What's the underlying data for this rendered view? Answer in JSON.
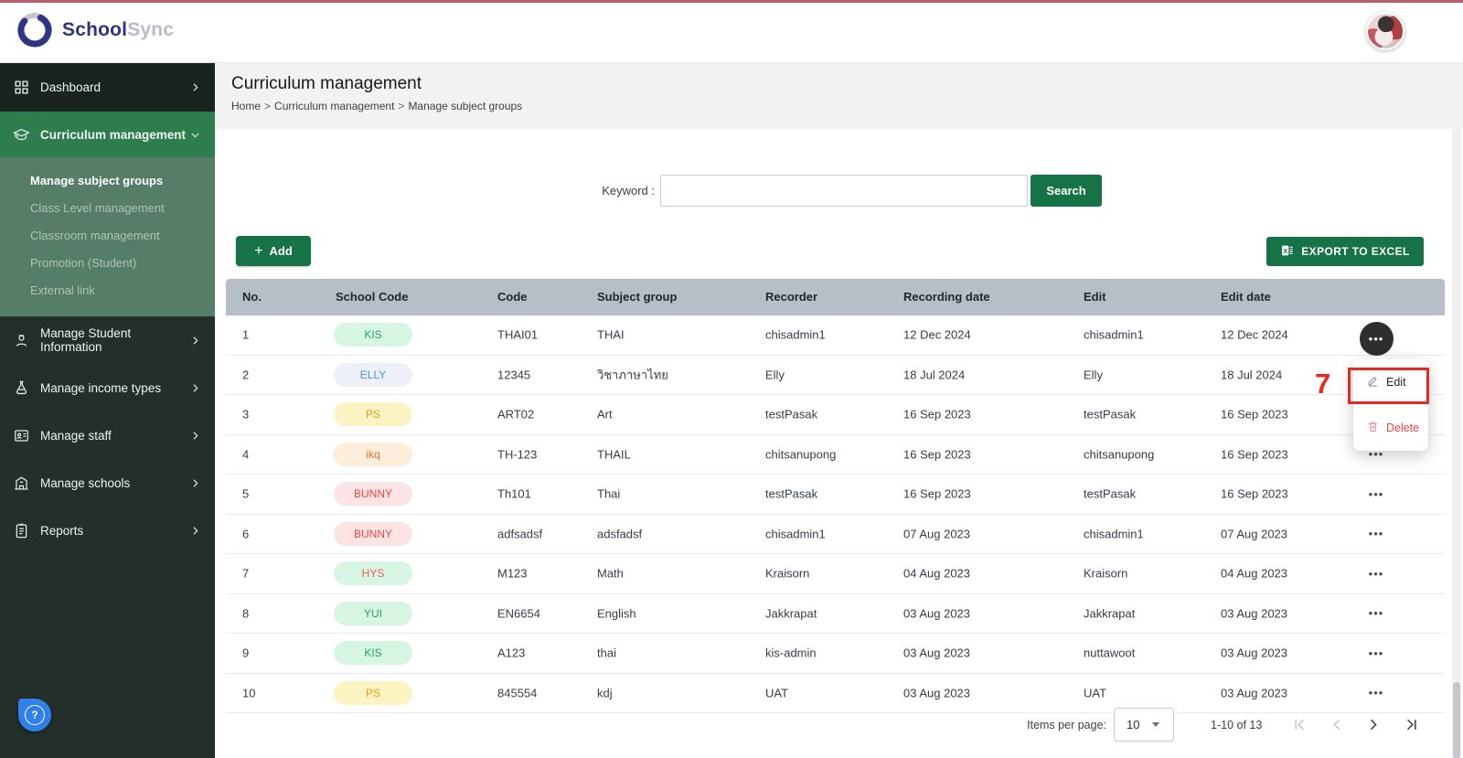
{
  "brand": {
    "name_primary": "School",
    "name_secondary": "Sync"
  },
  "colors": {
    "accent_green": "#157347",
    "sidebar_active_green": "#2e7d4e",
    "table_header_bg": "#b6bec8",
    "annotation_red": "#e8291f",
    "delete_red": "#ef4444",
    "help_blue": "#2f80ed"
  },
  "sidebar": {
    "items": [
      {
        "type": "parent",
        "name": "sidebar-item-dashboard",
        "icon": "grid-icon",
        "label": "Dashboard",
        "chevron": "chevron-right-icon",
        "active": false
      },
      {
        "type": "parent",
        "name": "sidebar-item-curriculum-management",
        "icon": "graduation-cap-icon",
        "label": "Curriculum management",
        "chevron": "chevron-down-icon",
        "active": true
      },
      {
        "type": "child",
        "name": "sidebar-item-manage-subject-groups",
        "label": "Manage subject groups",
        "active": true
      },
      {
        "type": "child",
        "name": "sidebar-item-class-level-management",
        "label": "Class Level management",
        "active": false
      },
      {
        "type": "child",
        "name": "sidebar-item-classroom-management",
        "label": "Classroom management",
        "active": false
      },
      {
        "type": "child",
        "name": "sidebar-item-promotion-student",
        "label": "Promotion (Student)",
        "active": false
      },
      {
        "type": "child",
        "name": "sidebar-item-external-link",
        "label": "External link",
        "active": false
      },
      {
        "type": "parent",
        "name": "sidebar-item-manage-student-information",
        "icon": "student-icon",
        "label": "Manage Student Information",
        "chevron": "chevron-right-icon",
        "active": false
      },
      {
        "type": "parent",
        "name": "sidebar-item-manage-income-types",
        "icon": "flask-icon",
        "label": "Manage income types",
        "chevron": "chevron-right-icon",
        "active": false
      },
      {
        "type": "parent",
        "name": "sidebar-item-manage-staff",
        "icon": "id-card-icon",
        "label": "Manage staff",
        "chevron": "chevron-right-icon",
        "active": false
      },
      {
        "type": "parent",
        "name": "sidebar-item-manage-schools",
        "icon": "school-building-icon",
        "label": "Manage schools",
        "chevron": "chevron-right-icon",
        "active": false
      },
      {
        "type": "parent",
        "name": "sidebar-item-reports",
        "icon": "report-icon",
        "label": "Reports",
        "chevron": "chevron-right-icon",
        "active": false
      }
    ]
  },
  "page": {
    "title": "Curriculum management",
    "breadcrumb": [
      "Home",
      "Curriculum management",
      "Manage subject groups"
    ]
  },
  "search": {
    "label": "Keyword :",
    "value": "",
    "button": "Search"
  },
  "toolbar": {
    "add_label": "Add",
    "export_label": "EXPORT TO EXCEL"
  },
  "table": {
    "columns": [
      {
        "key": "no",
        "label": "No."
      },
      {
        "key": "school",
        "label": "School Code"
      },
      {
        "key": "code",
        "label": "Code"
      },
      {
        "key": "subject",
        "label": "Subject group"
      },
      {
        "key": "recorder",
        "label": "Recorder"
      },
      {
        "key": "recdate",
        "label": "Recording date"
      },
      {
        "key": "edit",
        "label": "Edit"
      },
      {
        "key": "editdate",
        "label": "Edit date"
      }
    ],
    "rows": [
      {
        "no": "1",
        "badge": {
          "text": "KIS",
          "bg": "#d7f5e3",
          "color": "#27a162"
        },
        "code": "THAI01",
        "subject": "THAI",
        "recorder": "chisadmin1",
        "recording_date": "12 Dec 2024",
        "editor": "chisadmin1",
        "edit_date": "12 Dec 2024",
        "menu_open": true
      },
      {
        "no": "2",
        "badge": {
          "text": "ELLY",
          "bg": "#edf0f7",
          "color": "#4a90f0"
        },
        "code": "12345",
        "subject": "วิชาภาษาไทย",
        "recorder": "Elly",
        "recording_date": "18 Jul 2024",
        "editor": "Elly",
        "edit_date": "18 Jul 2024",
        "menu_open": false
      },
      {
        "no": "3",
        "badge": {
          "text": "PS",
          "bg": "#fcf3c3",
          "color": "#dfa21c"
        },
        "code": "ART02",
        "subject": "Art",
        "recorder": "testPasak",
        "recording_date": "16 Sep 2023",
        "editor": "testPasak",
        "edit_date": "16 Sep 2023",
        "menu_open": false
      },
      {
        "no": "4",
        "badge": {
          "text": "ikq",
          "bg": "#fdeedb",
          "color": "#ee6f2e"
        },
        "code": "TH-123",
        "subject": "THAIL",
        "recorder": "chitsanupong",
        "recording_date": "16 Sep 2023",
        "editor": "chitsanupong",
        "edit_date": "16 Sep 2023",
        "menu_open": false
      },
      {
        "no": "5",
        "badge": {
          "text": "BUNNY",
          "bg": "#fce4e4",
          "color": "#ef4444"
        },
        "code": "Th101",
        "subject": "Thai",
        "recorder": "testPasak",
        "recording_date": "16 Sep 2023",
        "editor": "testPasak",
        "edit_date": "16 Sep 2023",
        "menu_open": false
      },
      {
        "no": "6",
        "badge": {
          "text": "BUNNY",
          "bg": "#fce4e4",
          "color": "#ef4444"
        },
        "code": "adfsadsf",
        "subject": "adsfadsf",
        "recorder": "chisadmin1",
        "recording_date": "07 Aug 2023",
        "editor": "chisadmin1",
        "edit_date": "07 Aug 2023",
        "menu_open": false
      },
      {
        "no": "7",
        "badge": {
          "text": "HYS",
          "bg": "#d7f5e3",
          "color": "#ef5a5a"
        },
        "code": "M123",
        "subject": "Math",
        "recorder": "Kraisorn",
        "recording_date": "04 Aug 2023",
        "editor": "Kraisorn",
        "edit_date": "04 Aug 2023",
        "menu_open": false
      },
      {
        "no": "8",
        "badge": {
          "text": "YUI",
          "bg": "#d7f5e3",
          "color": "#27a162"
        },
        "code": "EN6654",
        "subject": "English",
        "recorder": "Jakkrapat",
        "recording_date": "03 Aug 2023",
        "editor": "Jakkrapat",
        "edit_date": "03 Aug 2023",
        "menu_open": false
      },
      {
        "no": "9",
        "badge": {
          "text": "KIS",
          "bg": "#d7f5e3",
          "color": "#27a162"
        },
        "code": "A123",
        "subject": "thai",
        "recorder": "kis-admin",
        "recording_date": "03 Aug 2023",
        "editor": "nuttawoot",
        "edit_date": "03 Aug 2023",
        "menu_open": false
      },
      {
        "no": "10",
        "badge": {
          "text": "PS",
          "bg": "#fcf3c3",
          "color": "#dfa21c"
        },
        "code": "845554",
        "subject": "kdj",
        "recorder": "UAT",
        "recording_date": "03 Aug 2023",
        "editor": "UAT",
        "edit_date": "03 Aug 2023",
        "menu_open": false
      }
    ]
  },
  "context_menu": {
    "edit_label": "Edit",
    "delete_label": "Delete",
    "annotation_number": "7"
  },
  "pagination": {
    "items_per_page_label": "Items per page:",
    "page_size": "10",
    "range": "1-10 of 13"
  }
}
